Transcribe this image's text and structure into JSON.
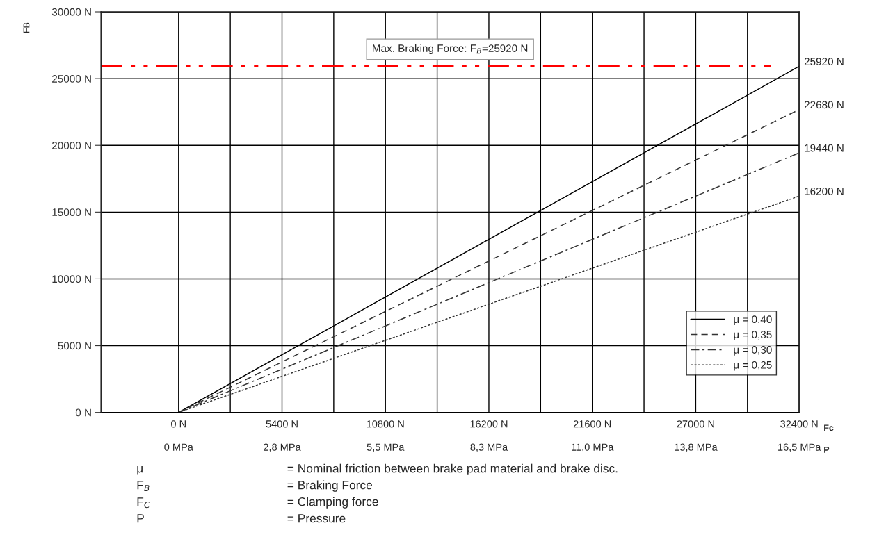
{
  "chart_data": {
    "type": "line",
    "xlabel": "Fc",
    "ylabel": "FB",
    "x": [
      0,
      32400
    ],
    "series": [
      {
        "name": "μ = 0,40",
        "color": "#000000",
        "line_style": "solid",
        "values": [
          0,
          25920
        ],
        "value_labels": [
          null,
          "25920 N"
        ]
      },
      {
        "name": "μ = 0,35",
        "color": "#333333",
        "line_style": "dashed",
        "values": [
          0,
          22680
        ],
        "value_labels": [
          null,
          "22680 N"
        ]
      },
      {
        "name": "μ = 0,30",
        "color": "#333333",
        "line_style": "dashdot",
        "values": [
          0,
          19440
        ],
        "value_labels": [
          null,
          "19440 N"
        ]
      },
      {
        "name": "μ = 0,25",
        "color": "#333333",
        "line_style": "dotted",
        "values": [
          0,
          16200
        ],
        "value_labels": [
          null,
          "16200 N"
        ]
      }
    ],
    "xlim": [
      -4050,
      32400
    ],
    "xticks": [
      {
        "value": 0,
        "label": "0 N"
      },
      {
        "value": 2700,
        "label": null
      },
      {
        "value": 5400,
        "label": "5400 N"
      },
      {
        "value": 8100,
        "label": null
      },
      {
        "value": 10800,
        "label": "10800 N"
      },
      {
        "value": 13500,
        "label": null
      },
      {
        "value": 16200,
        "label": "16200 N"
      },
      {
        "value": 18900,
        "label": null
      },
      {
        "value": 21600,
        "label": "21600 N"
      },
      {
        "value": 24300,
        "label": null
      },
      {
        "value": 27000,
        "label": "27000 N"
      },
      {
        "value": 29700,
        "label": null
      },
      {
        "value": 32400,
        "label": "32400 N"
      }
    ],
    "x2label": "P",
    "x2lim": [
      -2.0625,
      16.5
    ],
    "x2ticks": [
      {
        "value": 0,
        "label": "0 MPa"
      },
      {
        "value": 2.75,
        "label": "2,8 MPa"
      },
      {
        "value": 5.5,
        "label": "5,5 MPa"
      },
      {
        "value": 8.25,
        "label": "8,3 MPa"
      },
      {
        "value": 11,
        "label": "11,0 MPa"
      },
      {
        "value": 13.75,
        "label": "13,8 MPa"
      },
      {
        "value": 16.5,
        "label": "16,5 MPa"
      }
    ],
    "ylim": [
      0,
      30000
    ],
    "yticks": [
      {
        "value": 0,
        "label": "0 N"
      },
      {
        "value": 5000,
        "label": "5000 N"
      },
      {
        "value": 10000,
        "label": "10000 N"
      },
      {
        "value": 15000,
        "label": "15000 N"
      },
      {
        "value": 20000,
        "label": "20000 N"
      },
      {
        "value": 25000,
        "label": "25000 N"
      },
      {
        "value": 30000,
        "label": "30000 N"
      }
    ],
    "ref_lines": [
      {
        "axis": "y",
        "value": 25920,
        "label": "Max. Braking Force: F$_{B}$=25920 N",
        "color": "#ff0000",
        "line_style": "dashdotdot"
      }
    ],
    "annotations": [
      "μ",
      "= Nominal friction between brake pad material and brake disc.",
      "F$_{B}$",
      "= Braking Force",
      "F$_{C}$",
      "= Clamping force",
      "P",
      "= Pressure"
    ],
    "grid": true,
    "legend": "lower right",
    "marker": "none"
  }
}
